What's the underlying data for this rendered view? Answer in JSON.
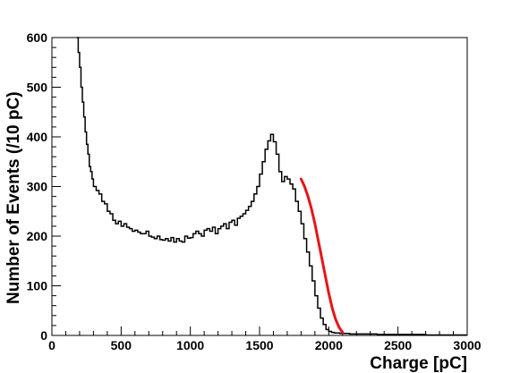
{
  "chart_data": {
    "type": "line",
    "title": "",
    "xlabel": "Charge [pC]",
    "ylabel": "Number of Events (/10 pC)",
    "xlim": [
      0,
      3000
    ],
    "ylim": [
      0,
      600
    ],
    "xticks": [
      0,
      500,
      1000,
      1500,
      2000,
      2500,
      3000
    ],
    "yticks": [
      0,
      100,
      200,
      300,
      400,
      500,
      600
    ],
    "grid": false,
    "legend": "none",
    "series": [
      {
        "style": "histogram",
        "color": "#000000",
        "x": [
          180,
          190,
          200,
          210,
          220,
          230,
          240,
          250,
          260,
          270,
          280,
          290,
          300,
          320,
          340,
          360,
          380,
          400,
          420,
          440,
          460,
          480,
          500,
          520,
          540,
          560,
          580,
          600,
          620,
          640,
          660,
          680,
          700,
          720,
          740,
          760,
          780,
          800,
          820,
          840,
          860,
          880,
          900,
          920,
          940,
          960,
          980,
          1000,
          1020,
          1040,
          1060,
          1080,
          1100,
          1120,
          1140,
          1160,
          1180,
          1200,
          1220,
          1240,
          1260,
          1280,
          1300,
          1320,
          1340,
          1360,
          1380,
          1400,
          1420,
          1440,
          1460,
          1480,
          1500,
          1520,
          1540,
          1560,
          1580,
          1600,
          1620,
          1640,
          1660,
          1680,
          1700,
          1720,
          1740,
          1760,
          1780,
          1800,
          1820,
          1840,
          1860,
          1880,
          1900,
          1920,
          1940,
          1960,
          1980,
          2000,
          2020,
          2040,
          2060,
          2080,
          2100,
          2150,
          2200,
          2250,
          2300,
          2350,
          2400,
          2450,
          2500,
          2550,
          2600,
          2650,
          2700,
          2750,
          2800,
          2850,
          2900,
          2950
        ],
        "values": [
          600,
          570,
          540,
          500,
          470,
          440,
          410,
          385,
          365,
          340,
          330,
          315,
          300,
          292,
          285,
          270,
          265,
          250,
          245,
          232,
          225,
          230,
          220,
          225,
          218,
          215,
          210,
          212,
          208,
          205,
          205,
          210,
          200,
          198,
          195,
          200,
          193,
          192,
          195,
          190,
          197,
          188,
          195,
          190,
          188,
          200,
          196,
          197,
          205,
          210,
          205,
          200,
          212,
          215,
          210,
          218,
          205,
          215,
          220,
          225,
          215,
          228,
          232,
          222,
          236,
          240,
          245,
          252,
          260,
          270,
          285,
          300,
          325,
          350,
          375,
          392,
          405,
          390,
          365,
          330,
          310,
          320,
          315,
          305,
          295,
          270,
          250,
          225,
          195,
          168,
          140,
          110,
          80,
          55,
          35,
          22,
          12,
          8,
          6,
          5,
          5,
          4,
          4,
          3,
          3,
          3,
          3,
          2,
          2,
          2,
          2,
          2,
          2,
          2,
          1,
          1,
          1,
          1,
          1,
          1
        ]
      },
      {
        "style": "fit",
        "color": "#e8141a",
        "x": [
          1800,
          1825,
          1850,
          1875,
          1900,
          1925,
          1950,
          1975,
          2000,
          2025,
          2050,
          2075,
          2100
        ],
        "values": [
          315,
          300,
          280,
          255,
          225,
          190,
          155,
          120,
          85,
          55,
          32,
          16,
          6
        ]
      }
    ]
  }
}
